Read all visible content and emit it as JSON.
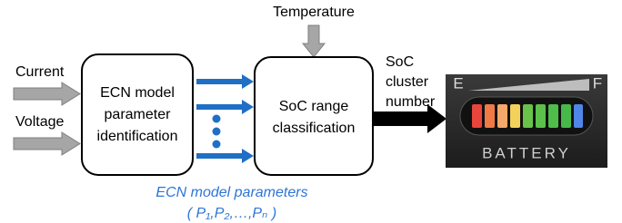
{
  "inputs": {
    "current": "Current",
    "voltage": "Voltage",
    "temperature": "Temperature"
  },
  "nodes": [
    {
      "lines": [
        "ECN model",
        "parameter",
        "identification"
      ]
    },
    {
      "lines": [
        "SoC range",
        "classification"
      ]
    }
  ],
  "output": {
    "lines": [
      "SoC",
      "cluster",
      "number"
    ]
  },
  "battery": {
    "empty": "E",
    "full": "F",
    "label": "BATTERY"
  },
  "parameters": {
    "title": "ECN model parameters",
    "symbols": "( P₁,P₂,…,Pₙ )"
  }
}
